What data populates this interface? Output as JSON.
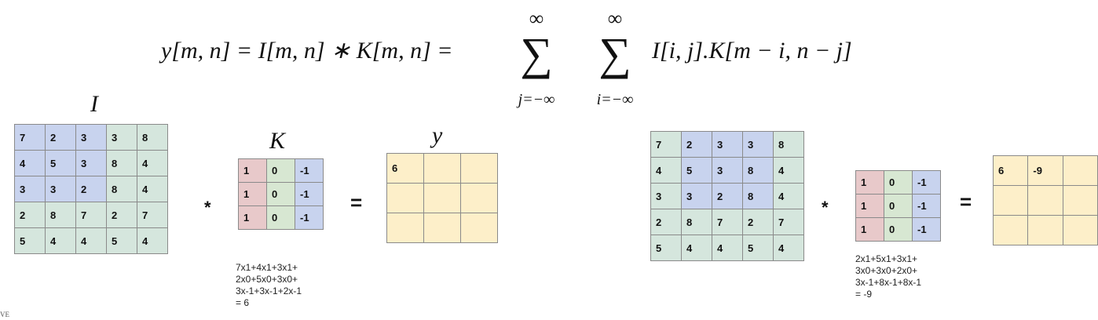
{
  "formula": {
    "lhs": "y[m, n] = I[m, n] ∗ K[m, n] =",
    "sum_top": "∞",
    "sum_bottom_j": "j=−∞",
    "sum_bottom_i": "i=−∞",
    "rhs": "I[i, j].K[m − i, n − j]"
  },
  "labels": {
    "input": "I",
    "kernel": "K",
    "output": "y"
  },
  "operators": {
    "convolve": "*",
    "equals": "="
  },
  "input_matrix": [
    [
      "7",
      "2",
      "3",
      "3",
      "8"
    ],
    [
      "4",
      "5",
      "3",
      "8",
      "4"
    ],
    [
      "3",
      "3",
      "2",
      "8",
      "4"
    ],
    [
      "2",
      "8",
      "7",
      "2",
      "7"
    ],
    [
      "5",
      "4",
      "4",
      "5",
      "4"
    ]
  ],
  "kernel_matrix": [
    [
      "1",
      "0",
      "-1"
    ],
    [
      "1",
      "0",
      "-1"
    ],
    [
      "1",
      "0",
      "-1"
    ]
  ],
  "example1": {
    "output": [
      [
        "6",
        "",
        ""
      ],
      [
        "",
        "",
        ""
      ],
      [
        "",
        "",
        ""
      ]
    ],
    "calc": [
      "7x1+4x1+3x1+",
      "2x0+5x0+3x0+",
      "3x-1+3x-1+2x-1",
      "= 6"
    ]
  },
  "example2": {
    "output": [
      [
        "6",
        "-9",
        ""
      ],
      [
        "",
        "",
        ""
      ],
      [
        "",
        "",
        ""
      ]
    ],
    "calc": [
      "2x1+5x1+3x1+",
      "3x0+3x0+2x0+",
      "3x-1+8x-1+8x-1",
      "= -9"
    ]
  },
  "corner_text": "VE",
  "colors": {
    "highlight": "#c8d3ee",
    "background_cell": "#d5e6dd",
    "kernel_col1": "#e8c9ca",
    "kernel_col2": "#d7e7d2",
    "kernel_col3": "#c8d3ee",
    "output_cell": "#fdefc9"
  }
}
